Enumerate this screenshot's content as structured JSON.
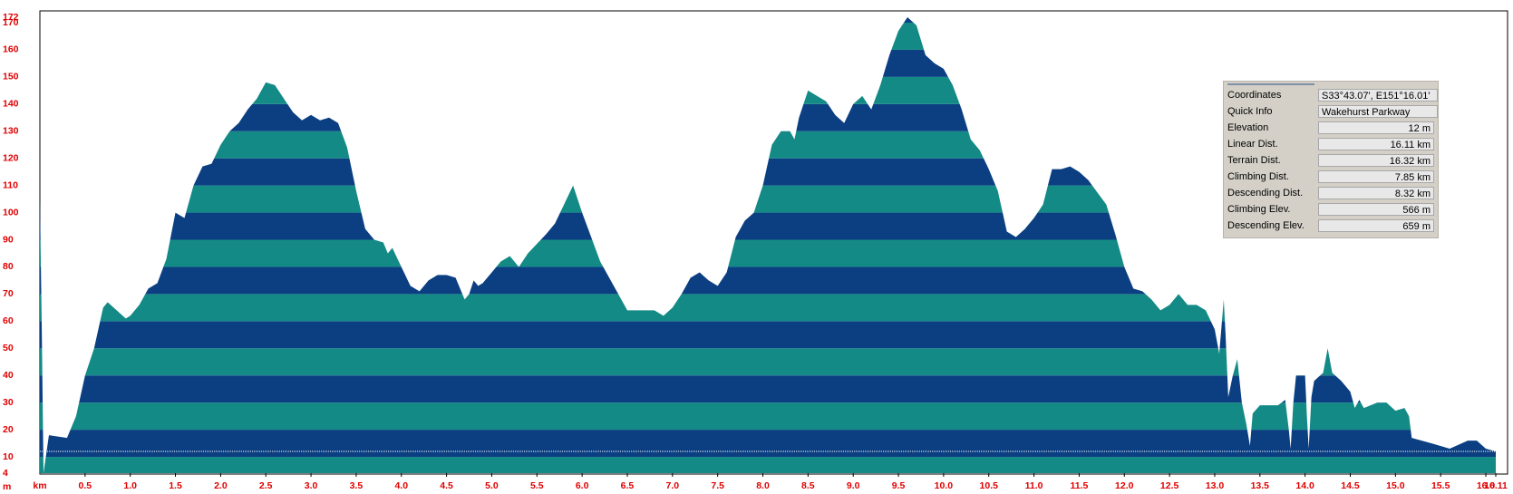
{
  "chart_data": {
    "type": "area",
    "x_label": "km",
    "y_label": "m",
    "x": [
      0,
      0.02,
      0.04,
      0.1,
      0.3,
      0.4,
      0.5,
      0.6,
      0.7,
      0.75,
      0.85,
      0.95,
      1.0,
      1.1,
      1.2,
      1.3,
      1.4,
      1.5,
      1.6,
      1.7,
      1.8,
      1.9,
      2.0,
      2.1,
      2.2,
      2.3,
      2.4,
      2.5,
      2.6,
      2.7,
      2.8,
      2.9,
      3.0,
      3.1,
      3.2,
      3.3,
      3.4,
      3.5,
      3.6,
      3.7,
      3.8,
      3.85,
      3.9,
      4.0,
      4.1,
      4.2,
      4.3,
      4.4,
      4.5,
      4.6,
      4.7,
      4.75,
      4.8,
      4.85,
      4.9,
      5.0,
      5.1,
      5.2,
      5.3,
      5.4,
      5.6,
      5.7,
      5.9,
      6.0,
      6.2,
      6.4,
      6.5,
      6.8,
      6.9,
      7.0,
      7.1,
      7.2,
      7.3,
      7.4,
      7.5,
      7.6,
      7.7,
      7.8,
      7.9,
      8.0,
      8.1,
      8.2,
      8.3,
      8.35,
      8.4,
      8.5,
      8.6,
      8.7,
      8.8,
      8.9,
      9.0,
      9.1,
      9.2,
      9.3,
      9.4,
      9.5,
      9.6,
      9.7,
      9.8,
      9.9,
      10.0,
      10.1,
      10.2,
      10.3,
      10.4,
      10.5,
      10.6,
      10.7,
      10.8,
      10.9,
      11.0,
      11.1,
      11.2,
      11.3,
      11.4,
      11.5,
      11.6,
      11.8,
      11.9,
      12.0,
      12.1,
      12.2,
      12.3,
      12.4,
      12.5,
      12.6,
      12.7,
      12.8,
      12.9,
      13.0,
      13.05,
      13.08,
      13.1,
      13.12,
      13.15,
      13.2,
      13.25,
      13.3,
      13.35,
      13.39,
      13.42,
      13.5,
      13.7,
      13.78,
      13.82,
      13.84,
      13.87,
      13.9,
      14.0,
      14.02,
      14.04,
      14.07,
      14.1,
      14.2,
      14.25,
      14.3,
      14.4,
      14.5,
      14.55,
      14.6,
      14.65,
      14.8,
      14.9,
      15.0,
      15.1,
      15.15,
      15.18,
      15.4,
      15.6,
      15.8,
      15.9,
      16.0,
      16.11
    ],
    "values": [
      105,
      60,
      4,
      18,
      17,
      25,
      40,
      50,
      65,
      67,
      64,
      61,
      62,
      66,
      72,
      74,
      83,
      100,
      98,
      110,
      117,
      118,
      125,
      130,
      133,
      138,
      142,
      148,
      147,
      142,
      137,
      134,
      136,
      134,
      135,
      133,
      124,
      108,
      94,
      90,
      89,
      85,
      87,
      80,
      73,
      71,
      75,
      77,
      77,
      76,
      68,
      70,
      75,
      73,
      74,
      78,
      82,
      84,
      80,
      85,
      92,
      96,
      110,
      100,
      82,
      70,
      64,
      64,
      62,
      65,
      70,
      76,
      78,
      75,
      73,
      78,
      91,
      97,
      100,
      110,
      125,
      130,
      130,
      127,
      135,
      145,
      143,
      141,
      136,
      133,
      140,
      143,
      138,
      147,
      158,
      167,
      172,
      169,
      158,
      155,
      153,
      147,
      138,
      127,
      123,
      116,
      108,
      93,
      91,
      94,
      98,
      103,
      116,
      116,
      117,
      115,
      112,
      103,
      92,
      80,
      72,
      71,
      68,
      64,
      66,
      70,
      66,
      66,
      64,
      57,
      48,
      60,
      68,
      55,
      32,
      40,
      46,
      30,
      22,
      14,
      26,
      29,
      29,
      31,
      20,
      13,
      30,
      40,
      40,
      25,
      13,
      32,
      38,
      41,
      50,
      41,
      38,
      34,
      28,
      31,
      28,
      30,
      30,
      27,
      28,
      25,
      17,
      15,
      13,
      16,
      16,
      13,
      12
    ],
    "colors": [
      "#138a85",
      "#0b3f82"
    ],
    "xlim": [
      0,
      16.11
    ],
    "ylim": [
      4,
      172
    ],
    "xticks": [
      0.5,
      {
        "value": 1,
        "label": "1.0"
      },
      1.5,
      {
        "value": 2,
        "label": "2.0"
      },
      2.5,
      {
        "value": 3,
        "label": "3.0"
      },
      3.5,
      {
        "value": 4,
        "label": "4.0"
      },
      4.5,
      {
        "value": 5,
        "label": "5.0"
      },
      5.5,
      {
        "value": 6,
        "label": "6.0"
      },
      6.5,
      {
        "value": 7,
        "label": "7.0"
      },
      7.5,
      {
        "value": 8,
        "label": "8.0"
      },
      8.5,
      {
        "value": 9,
        "label": "9.0"
      },
      9.5,
      {
        "value": 10,
        "label": "10.0"
      },
      10.5,
      {
        "value": 11,
        "label": "11.0"
      },
      11.5,
      {
        "value": 12,
        "label": "12.0"
      },
      12.5,
      {
        "value": 13,
        "label": "13.0"
      },
      13.5,
      {
        "value": 14,
        "label": "14.0"
      },
      14.5,
      {
        "value": 15,
        "label": "15.0"
      },
      15.5,
      {
        "value": 16,
        "label": "16.0"
      },
      16.11
    ],
    "yticks": [
      4,
      10,
      20,
      30,
      40,
      50,
      60,
      70,
      80,
      90,
      100,
      110,
      120,
      130,
      140,
      150,
      160,
      170,
      172
    ]
  },
  "info_panel": {
    "rows": [
      [
        "Coordinates",
        "S33°43.07', E151°16.01'"
      ],
      [
        "Quick Info",
        "Wakehurst Parkway"
      ],
      [
        "Elevation",
        "12 m"
      ],
      [
        "Linear Dist.",
        "16.11 km"
      ],
      [
        "Terrain Dist.",
        "16.32 km"
      ],
      [
        "Climbing Dist.",
        "7.85 km"
      ],
      [
        "Descending Dist.",
        "8.32 km"
      ],
      [
        "Climbing Elev.",
        "566 m"
      ],
      [
        "Descending Elev.",
        "659 m"
      ]
    ]
  }
}
